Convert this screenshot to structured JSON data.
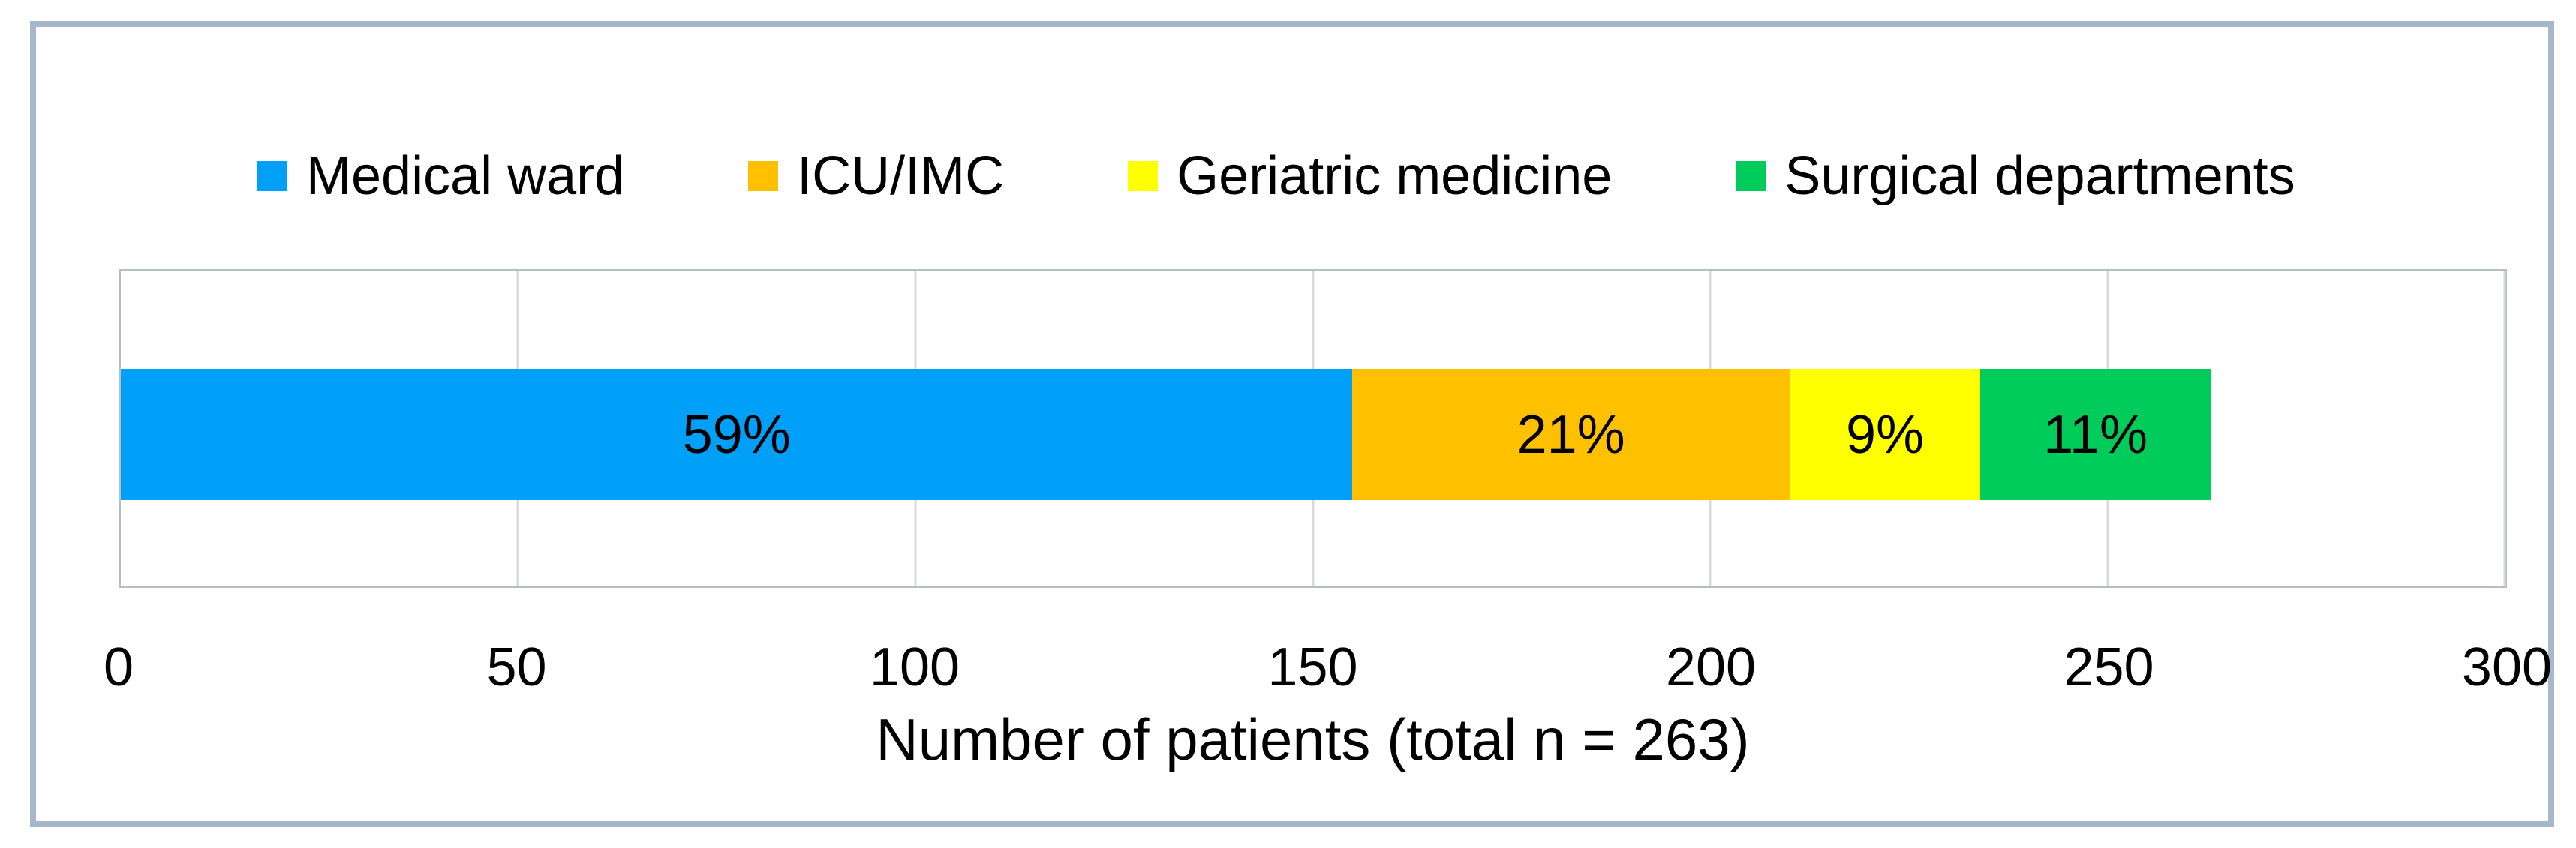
{
  "chart_data": {
    "type": "bar",
    "orientation": "horizontal",
    "stacked": true,
    "title": "",
    "xlabel": "Number of patients (total n = 263)",
    "ylabel": "",
    "xlim": [
      0,
      300
    ],
    "x_ticks": [
      "0",
      "50",
      "100",
      "150",
      "200",
      "250",
      "300"
    ],
    "x_tick_values": [
      0,
      50,
      100,
      150,
      200,
      250,
      300
    ],
    "total_n": 263,
    "grid": "vertical-gridlines-on",
    "legend_position": "top",
    "series": [
      {
        "name": "Medical ward",
        "value": 155,
        "percent_label": "59%",
        "color": "#00A0F8"
      },
      {
        "name": "ICU/IMC",
        "value": 55,
        "percent_label": "21%",
        "color": "#FFC000"
      },
      {
        "name": "Geriatric medicine",
        "value": 24,
        "percent_label": "9%",
        "color": "#FFFF00"
      },
      {
        "name": "Surgical departments",
        "value": 29,
        "percent_label": "11%",
        "color": "#00CC5C"
      }
    ],
    "colors": {
      "frame_border": "#A7B8CC",
      "plot_border": "#B5BFCB",
      "gridline": "#D9D9D9",
      "text": "#000000",
      "background": "#FFFFFF"
    }
  }
}
